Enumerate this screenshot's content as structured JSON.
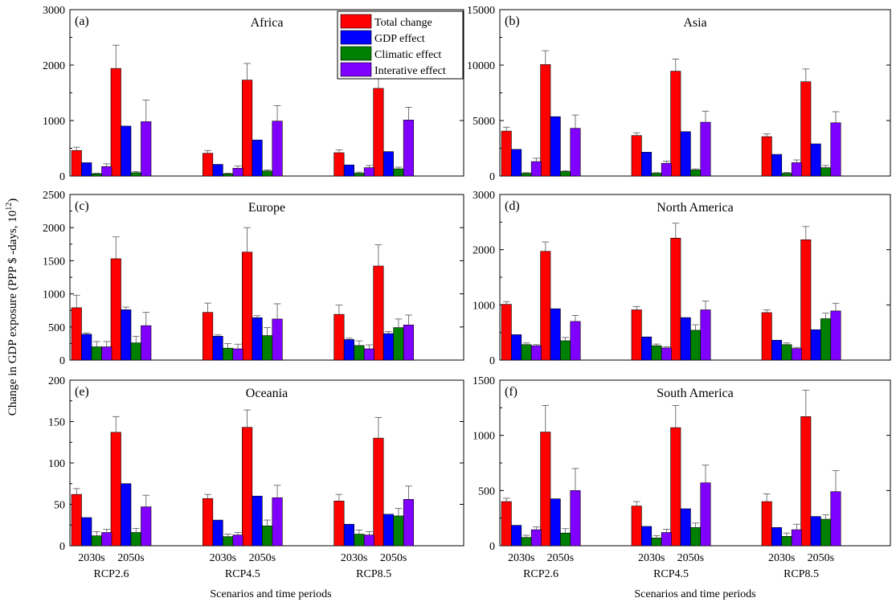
{
  "figure": {
    "ylabel": "Change in GDP exposure (PPP $ -days, 10",
    "ylabel_sup": "12",
    "ylabel_tail": ")",
    "xlabel": "Scenarios and time periods"
  },
  "chart_data": [
    {
      "type": "bar",
      "panel": "(a)",
      "title": "Africa",
      "ylim": [
        0,
        3000
      ],
      "yticks": [
        0,
        1000,
        2000,
        3000
      ],
      "categories": [
        "RCP2.6 2030s",
        "RCP2.6 2050s",
        "RCP4.5 2030s",
        "RCP4.5 2050s",
        "RCP8.5 2030s",
        "RCP8.5 2050s"
      ],
      "series": [
        {
          "name": "Total change",
          "values": [
            460,
            1940,
            410,
            1730,
            420,
            1580
          ],
          "errors": [
            60,
            420,
            50,
            300,
            50,
            220
          ]
        },
        {
          "name": "GDP effect",
          "values": [
            240,
            900,
            210,
            650,
            200,
            440
          ],
          "errors": [
            0,
            0,
            0,
            0,
            0,
            0
          ]
        },
        {
          "name": "Climatic effect",
          "values": [
            40,
            60,
            40,
            90,
            50,
            130
          ],
          "errors": [
            10,
            20,
            10,
            20,
            20,
            30
          ]
        },
        {
          "name": "Interative effect",
          "values": [
            170,
            980,
            140,
            990,
            150,
            1010
          ],
          "errors": [
            50,
            390,
            40,
            280,
            40,
            230
          ]
        }
      ]
    },
    {
      "type": "bar",
      "panel": "(b)",
      "title": "Asia",
      "ylim": [
        0,
        15000
      ],
      "yticks": [
        0,
        5000,
        10000,
        15000
      ],
      "categories": [
        "RCP2.6 2030s",
        "RCP2.6 2050s",
        "RCP4.5 2030s",
        "RCP4.5 2050s",
        "RCP8.5 2030s",
        "RCP8.5 2050s"
      ],
      "series": [
        {
          "name": "Total change",
          "values": [
            4050,
            10050,
            3650,
            9450,
            3550,
            8500
          ],
          "errors": [
            350,
            1250,
            250,
            1100,
            250,
            1150
          ]
        },
        {
          "name": "GDP effect",
          "values": [
            2400,
            5350,
            2150,
            4000,
            1950,
            2900
          ],
          "errors": [
            0,
            0,
            0,
            0,
            0,
            0
          ]
        },
        {
          "name": "Climatic effect",
          "values": [
            250,
            400,
            250,
            550,
            250,
            750
          ],
          "errors": [
            50,
            80,
            50,
            100,
            80,
            200
          ]
        },
        {
          "name": "Interative effect",
          "values": [
            1300,
            4300,
            1150,
            4850,
            1200,
            4800
          ],
          "errors": [
            300,
            1200,
            200,
            1000,
            250,
            1000
          ]
        }
      ]
    },
    {
      "type": "bar",
      "panel": "(c)",
      "title": "Europe",
      "ylim": [
        0,
        2500
      ],
      "yticks": [
        0,
        500,
        1000,
        1500,
        2000,
        2500
      ],
      "categories": [
        "RCP2.6 2030s",
        "RCP2.6 2050s",
        "RCP4.5 2030s",
        "RCP4.5 2050s",
        "RCP8.5 2030s",
        "RCP8.5 2050s"
      ],
      "series": [
        {
          "name": "Total change",
          "values": [
            790,
            1530,
            720,
            1630,
            690,
            1420
          ],
          "errors": [
            190,
            330,
            140,
            370,
            140,
            320
          ]
        },
        {
          "name": "GDP effect",
          "values": [
            390,
            760,
            360,
            640,
            310,
            400
          ],
          "errors": [
            20,
            40,
            20,
            30,
            20,
            30
          ]
        },
        {
          "name": "Climatic effect",
          "values": [
            200,
            260,
            180,
            370,
            220,
            490
          ],
          "errors": [
            80,
            100,
            70,
            120,
            70,
            130
          ]
        },
        {
          "name": "Interative effect",
          "values": [
            200,
            520,
            170,
            620,
            170,
            530
          ],
          "errors": [
            80,
            200,
            70,
            230,
            60,
            150
          ]
        }
      ]
    },
    {
      "type": "bar",
      "panel": "(d)",
      "title": "North America",
      "ylim": [
        0,
        3000
      ],
      "yticks": [
        0,
        1000,
        2000,
        3000
      ],
      "categories": [
        "RCP2.6 2030s",
        "RCP2.6 2050s",
        "RCP4.5 2030s",
        "RCP4.5 2050s",
        "RCP8.5 2030s",
        "RCP8.5 2050s"
      ],
      "series": [
        {
          "name": "Total change",
          "values": [
            1010,
            1970,
            910,
            2210,
            860,
            2180
          ],
          "errors": [
            50,
            170,
            60,
            270,
            50,
            240
          ]
        },
        {
          "name": "GDP effect",
          "values": [
            460,
            930,
            420,
            770,
            360,
            550
          ],
          "errors": [
            0,
            0,
            0,
            0,
            0,
            0
          ]
        },
        {
          "name": "Climatic effect",
          "values": [
            280,
            350,
            260,
            540,
            280,
            750
          ],
          "errors": [
            30,
            60,
            30,
            100,
            30,
            100
          ]
        },
        {
          "name": "Interative effect",
          "values": [
            260,
            700,
            220,
            910,
            210,
            890
          ],
          "errors": [
            20,
            110,
            20,
            160,
            20,
            140
          ]
        }
      ]
    },
    {
      "type": "bar",
      "panel": "(e)",
      "title": "Oceania",
      "ylim": [
        0,
        200
      ],
      "yticks": [
        0,
        50,
        100,
        150,
        200
      ],
      "categories": [
        "RCP2.6 2030s",
        "RCP2.6 2050s",
        "RCP4.5 2030s",
        "RCP4.5 2050s",
        "RCP8.5 2030s",
        "RCP8.5 2050s"
      ],
      "series": [
        {
          "name": "Total change",
          "values": [
            62,
            137,
            57,
            143,
            54,
            130
          ],
          "errors": [
            7,
            19,
            5,
            21,
            8,
            25
          ]
        },
        {
          "name": "GDP effect",
          "values": [
            34,
            75,
            31,
            60,
            26,
            38
          ],
          "errors": [
            0,
            0,
            0,
            0,
            0,
            0
          ]
        },
        {
          "name": "Climatic effect",
          "values": [
            12,
            16,
            11,
            24,
            14,
            36
          ],
          "errors": [
            5,
            5,
            3,
            7,
            5,
            9
          ]
        },
        {
          "name": "Interative effect",
          "values": [
            16,
            47,
            13,
            58,
            13,
            56
          ],
          "errors": [
            4,
            14,
            3,
            15,
            4,
            16
          ]
        }
      ]
    },
    {
      "type": "bar",
      "panel": "(f)",
      "title": "South America",
      "ylim": [
        0,
        1500
      ],
      "yticks": [
        0,
        500,
        1000,
        1500
      ],
      "categories": [
        "RCP2.6 2030s",
        "RCP2.6 2050s",
        "RCP4.5 2030s",
        "RCP4.5 2050s",
        "RCP8.5 2030s",
        "RCP8.5 2050s"
      ],
      "series": [
        {
          "name": "Total change",
          "values": [
            400,
            1030,
            360,
            1070,
            400,
            1170
          ],
          "errors": [
            30,
            240,
            40,
            200,
            70,
            240
          ]
        },
        {
          "name": "GDP effect",
          "values": [
            185,
            425,
            175,
            335,
            165,
            265
          ],
          "errors": [
            0,
            0,
            0,
            0,
            0,
            0
          ]
        },
        {
          "name": "Climatic effect",
          "values": [
            75,
            115,
            70,
            165,
            85,
            240
          ],
          "errors": [
            20,
            40,
            20,
            40,
            30,
            40
          ]
        },
        {
          "name": "Interative effect",
          "values": [
            145,
            500,
            120,
            570,
            145,
            490
          ],
          "errors": [
            25,
            200,
            30,
            160,
            50,
            190
          ]
        }
      ]
    }
  ],
  "xgroups": {
    "periods": [
      "2030s",
      "2050s"
    ],
    "scenarios": [
      "RCP2.6",
      "RCP4.5",
      "RCP8.5"
    ]
  },
  "legend": {
    "placement": "top-right of panel (a)",
    "entries": [
      "Total change",
      "GDP effect",
      "Climatic effect",
      "Interative effect"
    ]
  },
  "colors": {
    "Total change": "#ff0000",
    "GDP effect": "#0000ff",
    "Climatic effect": "#008000",
    "Interative effect": "#8000ff"
  }
}
